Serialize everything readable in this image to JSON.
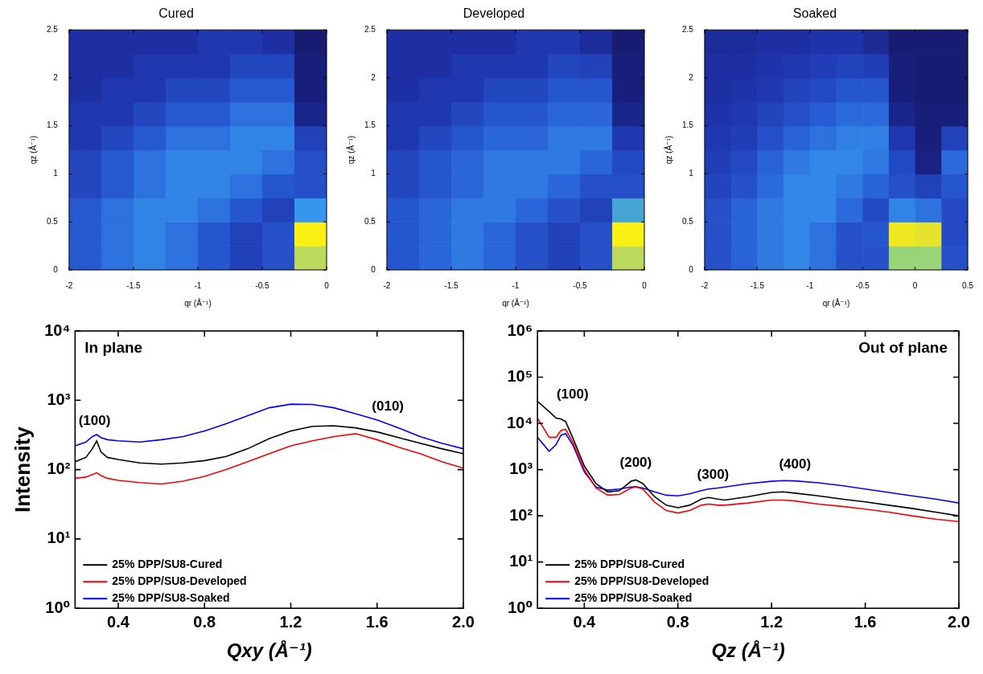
{
  "chart_data": [
    {
      "type": "heatmap",
      "title": "Cured",
      "x_label": "qr (Å⁻¹)",
      "y_label": "qz (Å⁻¹)",
      "xlim": [
        -2,
        0
      ],
      "ylim": [
        0,
        2.5
      ],
      "xticks": [
        -2,
        -1.5,
        -1,
        -0.5,
        0
      ],
      "yticks": [
        0,
        0.5,
        1,
        1.5,
        2,
        2.5
      ],
      "zlim": [
        0,
        1
      ],
      "cell_x": [
        -1.875,
        -1.625,
        -1.375,
        -1.125,
        -0.875,
        -0.625,
        -0.375,
        -0.125
      ],
      "cell_y": [
        0.125,
        0.375,
        0.625,
        0.875,
        1.125,
        1.375,
        1.625,
        1.875,
        2.125,
        2.375
      ],
      "cells": [
        [
          0.33,
          0.4,
          0.45,
          0.4,
          0.32,
          0.25,
          0.3,
          0.8
        ],
        [
          0.33,
          0.4,
          0.45,
          0.4,
          0.32,
          0.25,
          0.3,
          1.0
        ],
        [
          0.33,
          0.4,
          0.45,
          0.45,
          0.4,
          0.32,
          0.25,
          0.5
        ],
        [
          0.27,
          0.33,
          0.4,
          0.45,
          0.45,
          0.4,
          0.32,
          0.3
        ],
        [
          0.27,
          0.33,
          0.4,
          0.45,
          0.45,
          0.45,
          0.4,
          0.3
        ],
        [
          0.22,
          0.27,
          0.33,
          0.4,
          0.4,
          0.45,
          0.45,
          0.25
        ],
        [
          0.22,
          0.22,
          0.27,
          0.33,
          0.33,
          0.4,
          0.4,
          0.12
        ],
        [
          0.18,
          0.22,
          0.22,
          0.27,
          0.27,
          0.33,
          0.33,
          0.08
        ],
        [
          0.18,
          0.18,
          0.22,
          0.22,
          0.22,
          0.27,
          0.27,
          0.08
        ],
        [
          0.18,
          0.18,
          0.18,
          0.18,
          0.22,
          0.22,
          0.18,
          0.06
        ]
      ]
    },
    {
      "type": "heatmap",
      "title": "Developed",
      "x_label": "qr (Å⁻¹)",
      "y_label": "qz (Å⁻¹)",
      "xlim": [
        -2,
        0
      ],
      "ylim": [
        0,
        2.5
      ],
      "xticks": [
        -2,
        -1.5,
        -1,
        -0.5,
        0
      ],
      "yticks": [
        0,
        0.5,
        1,
        1.5,
        2,
        2.5
      ],
      "zlim": [
        0,
        1
      ],
      "cell_x": [
        -1.875,
        -1.625,
        -1.375,
        -1.125,
        -0.875,
        -0.625,
        -0.375,
        -0.125
      ],
      "cell_y": [
        0.125,
        0.375,
        0.625,
        0.875,
        1.125,
        1.375,
        1.625,
        1.875,
        2.125,
        2.375
      ],
      "cells": [
        [
          0.32,
          0.37,
          0.42,
          0.37,
          0.3,
          0.25,
          0.3,
          0.8
        ],
        [
          0.32,
          0.37,
          0.42,
          0.37,
          0.3,
          0.25,
          0.3,
          1.0
        ],
        [
          0.32,
          0.37,
          0.42,
          0.42,
          0.37,
          0.3,
          0.25,
          0.55
        ],
        [
          0.27,
          0.32,
          0.37,
          0.42,
          0.42,
          0.37,
          0.3,
          0.3
        ],
        [
          0.27,
          0.32,
          0.37,
          0.42,
          0.42,
          0.42,
          0.37,
          0.28
        ],
        [
          0.22,
          0.27,
          0.32,
          0.37,
          0.37,
          0.42,
          0.42,
          0.22
        ],
        [
          0.22,
          0.22,
          0.27,
          0.32,
          0.32,
          0.37,
          0.37,
          0.12
        ],
        [
          0.18,
          0.22,
          0.22,
          0.27,
          0.27,
          0.32,
          0.32,
          0.08
        ],
        [
          0.18,
          0.18,
          0.22,
          0.22,
          0.22,
          0.27,
          0.25,
          0.08
        ],
        [
          0.18,
          0.18,
          0.18,
          0.18,
          0.22,
          0.22,
          0.16,
          0.06
        ]
      ]
    },
    {
      "type": "heatmap",
      "title": "Soaked",
      "x_label": "qr (Å⁻¹)",
      "y_label": "qz (Å⁻¹)",
      "xlim": [
        -2,
        0.5
      ],
      "ylim": [
        0,
        2.5
      ],
      "xticks": [
        -2,
        -1.5,
        -1,
        -0.5,
        0,
        0.5
      ],
      "yticks": [
        0,
        0.5,
        1,
        1.5,
        2,
        2.5
      ],
      "zlim": [
        0,
        1
      ],
      "cell_x": [
        -1.875,
        -1.625,
        -1.375,
        -1.125,
        -0.875,
        -0.625,
        -0.375,
        -0.125,
        0.125,
        0.375
      ],
      "cell_y": [
        0.125,
        0.375,
        0.625,
        0.875,
        1.125,
        1.375,
        1.625,
        1.875,
        2.125,
        2.375
      ],
      "cells": [
        [
          0.3,
          0.36,
          0.42,
          0.46,
          0.4,
          0.3,
          0.3,
          0.75,
          0.75,
          0.3
        ],
        [
          0.3,
          0.36,
          0.42,
          0.46,
          0.4,
          0.3,
          0.32,
          0.95,
          0.9,
          0.28
        ],
        [
          0.3,
          0.36,
          0.42,
          0.46,
          0.46,
          0.38,
          0.28,
          0.45,
          0.4,
          0.28
        ],
        [
          0.26,
          0.3,
          0.38,
          0.46,
          0.46,
          0.42,
          0.36,
          0.3,
          0.25,
          0.32
        ],
        [
          0.24,
          0.28,
          0.36,
          0.42,
          0.46,
          0.46,
          0.42,
          0.28,
          0.1,
          0.38
        ],
        [
          0.22,
          0.24,
          0.3,
          0.36,
          0.4,
          0.44,
          0.44,
          0.22,
          0.08,
          0.25
        ],
        [
          0.2,
          0.22,
          0.26,
          0.3,
          0.34,
          0.38,
          0.38,
          0.12,
          0.08,
          0.08
        ],
        [
          0.18,
          0.2,
          0.22,
          0.26,
          0.28,
          0.32,
          0.32,
          0.08,
          0.06,
          0.06
        ],
        [
          0.18,
          0.18,
          0.2,
          0.22,
          0.24,
          0.26,
          0.24,
          0.08,
          0.06,
          0.06
        ],
        [
          0.16,
          0.16,
          0.18,
          0.18,
          0.2,
          0.2,
          0.15,
          0.06,
          0.06,
          0.06
        ]
      ]
    },
    {
      "type": "line",
      "title": "In plane",
      "x_label": "Qxy (Å⁻¹)",
      "y_label": "Intensity",
      "log": "y",
      "grid": false,
      "legend": "lower left",
      "xlim": [
        0.2,
        2.0
      ],
      "ylim": [
        1,
        10000
      ],
      "xticks": [
        0.4,
        0.8,
        1.2,
        1.6,
        {
          "value": 2,
          "label": "2.0"
        }
      ],
      "yticks": [
        {
          "value": 1,
          "label": "10⁰"
        },
        {
          "value": 10,
          "label": "10¹"
        },
        {
          "value": 100,
          "label": "10²"
        },
        {
          "value": 1000,
          "label": "10³"
        },
        {
          "value": 10000,
          "label": "10⁴"
        }
      ],
      "x": [
        0.2,
        0.25,
        0.28,
        0.3,
        0.32,
        0.35,
        0.4,
        0.5,
        0.6,
        0.7,
        0.8,
        0.9,
        1.0,
        1.1,
        1.2,
        1.3,
        1.4,
        1.5,
        1.6,
        1.7,
        1.8,
        1.9,
        2.0
      ],
      "series": [
        {
          "name": "25% DPP/SU8-Cured",
          "color": "#000000",
          "values": [
            130,
            150,
            200,
            260,
            180,
            150,
            140,
            125,
            120,
            125,
            135,
            155,
            200,
            280,
            360,
            420,
            430,
            400,
            350,
            290,
            240,
            200,
            170
          ]
        },
        {
          "name": "25% DPP/SU8-Developed",
          "color": "#ff0000",
          "values": [
            75,
            78,
            85,
            90,
            82,
            75,
            70,
            65,
            62,
            68,
            80,
            100,
            130,
            170,
            220,
            260,
            300,
            330,
            270,
            210,
            170,
            130,
            105
          ]
        },
        {
          "name": "25% DPP/SU8-Soaked",
          "color": "#0000ff",
          "values": [
            220,
            250,
            300,
            320,
            290,
            270,
            260,
            250,
            270,
            300,
            360,
            460,
            600,
            780,
            880,
            870,
            780,
            640,
            520,
            400,
            300,
            240,
            200
          ]
        }
      ],
      "annotations": [
        {
          "text": "(100)",
          "x": 0.29,
          "y": 400
        },
        {
          "text": "(010)",
          "x": 1.65,
          "y": 650
        }
      ]
    },
    {
      "type": "line",
      "title": "Out of plane",
      "x_label": "Qz (Å⁻¹)",
      "log": "y",
      "grid": false,
      "legend": "lower left",
      "xlim": [
        0.2,
        2.0
      ],
      "ylim": [
        1,
        1000000
      ],
      "xticks": [
        0.4,
        0.8,
        1.2,
        1.6,
        {
          "value": 2,
          "label": "2.0"
        }
      ],
      "yticks": [
        {
          "value": 1,
          "label": "10⁰"
        },
        {
          "value": 10,
          "label": "10¹"
        },
        {
          "value": 100,
          "label": "10²"
        },
        {
          "value": 1000,
          "label": "10³"
        },
        {
          "value": 10000,
          "label": "10⁴"
        },
        {
          "value": 100000,
          "label": "10⁵"
        },
        {
          "value": 1000000,
          "label": "10⁶"
        }
      ],
      "x": [
        0.2,
        0.25,
        0.28,
        0.3,
        0.32,
        0.35,
        0.4,
        0.45,
        0.5,
        0.55,
        0.6,
        0.62,
        0.65,
        0.7,
        0.75,
        0.8,
        0.85,
        0.9,
        0.93,
        0.97,
        1.0,
        1.1,
        1.2,
        1.25,
        1.3,
        1.4,
        1.5,
        1.6,
        1.7,
        1.8,
        1.9,
        2.0
      ],
      "series": [
        {
          "name": "25% DPP/SU8-Cured",
          "color": "#000000",
          "values": [
            30000,
            18000,
            13000,
            12500,
            11000,
            5000,
            1200,
            500,
            330,
            350,
            560,
            600,
            500,
            260,
            170,
            150,
            170,
            230,
            250,
            230,
            220,
            260,
            320,
            330,
            310,
            270,
            230,
            200,
            170,
            145,
            120,
            100
          ]
        },
        {
          "name": "25% DPP/SU8-Developed",
          "color": "#ff0000",
          "values": [
            13000,
            5000,
            5000,
            7000,
            7500,
            4000,
            1000,
            400,
            280,
            290,
            400,
            420,
            380,
            200,
            130,
            115,
            130,
            170,
            180,
            170,
            170,
            190,
            220,
            220,
            210,
            180,
            160,
            140,
            120,
            100,
            85,
            75
          ]
        },
        {
          "name": "25% DPP/SU8-Soaked",
          "color": "#0000ff",
          "values": [
            5000,
            2500,
            3500,
            5500,
            6000,
            3500,
            900,
            420,
            360,
            380,
            420,
            430,
            400,
            330,
            280,
            270,
            300,
            350,
            380,
            400,
            420,
            500,
            560,
            580,
            570,
            520,
            450,
            380,
            320,
            270,
            230,
            190
          ]
        }
      ],
      "annotations": [
        {
          "text": "(100)",
          "x": 0.35,
          "y": 30000
        },
        {
          "text": "(200)",
          "x": 0.62,
          "y": 1000
        },
        {
          "text": "(300)",
          "x": 0.95,
          "y": 550
        },
        {
          "text": "(400)",
          "x": 1.3,
          "y": 900
        }
      ]
    }
  ]
}
